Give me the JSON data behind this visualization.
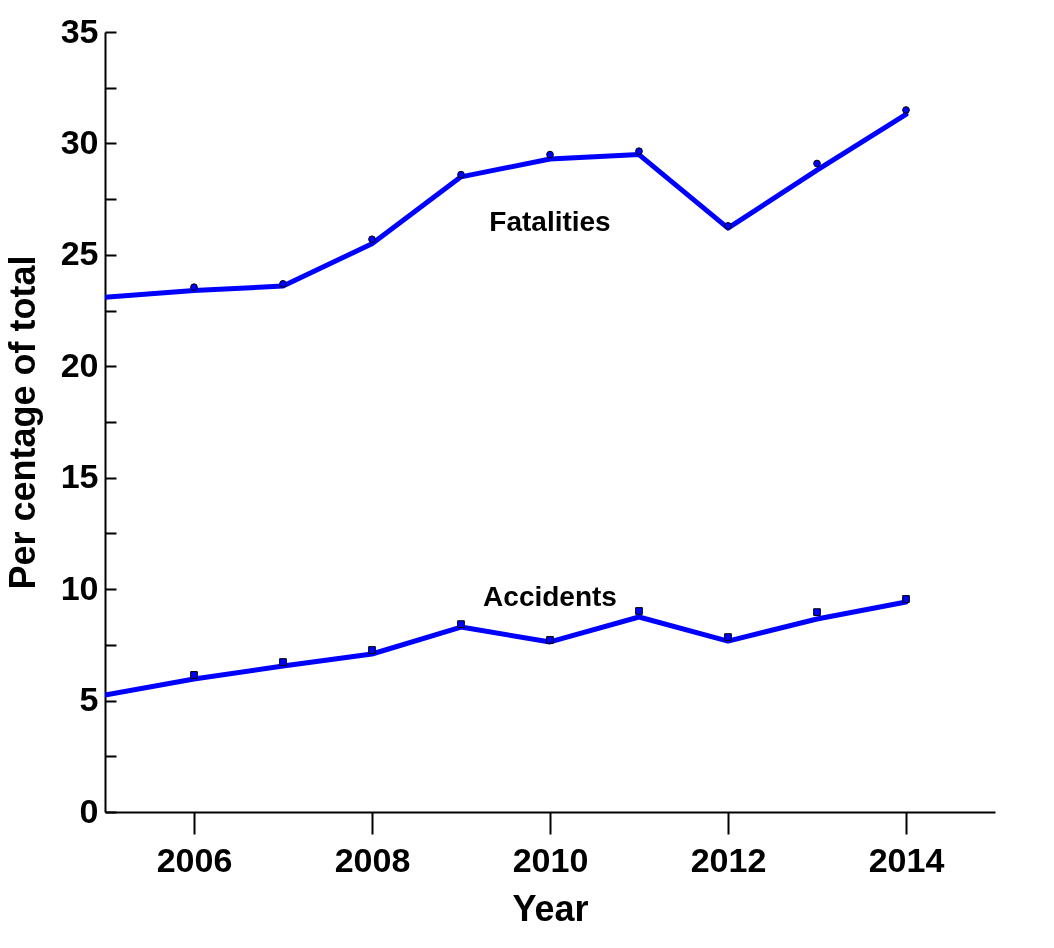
{
  "chart_data": {
    "type": "line",
    "xlabel": "Year",
    "ylabel": "Per centage of total",
    "x": [
      2005,
      2006,
      2007,
      2008,
      2009,
      2010,
      2011,
      2012,
      2013,
      2014
    ],
    "xlim": [
      2005,
      2015
    ],
    "xticks": [
      2006,
      2008,
      2010,
      2012,
      2014
    ],
    "ylim": [
      0,
      35
    ],
    "yticks": [
      0,
      {
        "value": 2.5,
        "label": null
      },
      5,
      {
        "value": 7.5,
        "label": null
      },
      10,
      {
        "value": 12.5,
        "label": null
      },
      15,
      {
        "value": 17.5,
        "label": null
      },
      20,
      {
        "value": 22.5,
        "label": null
      },
      25,
      {
        "value": 27.5,
        "label": null
      },
      30,
      {
        "value": 32.5,
        "label": null
      },
      35
    ],
    "grid": false,
    "legend": false,
    "series": [
      {
        "type": "line",
        "name": "Fatalities",
        "color": "#0000ff",
        "values": [
          23.1,
          23.4,
          23.6,
          25.5,
          28.5,
          29.3,
          29.5,
          26.2,
          28.8,
          31.3
        ]
      },
      {
        "type": "line",
        "name": "Accidents",
        "color": "#0000ff",
        "values": [
          5.25,
          5.97,
          6.55,
          7.09,
          8.3,
          7.63,
          8.75,
          7.67,
          8.66,
          9.42
        ]
      },
      {
        "type": "scatter",
        "marker": "circle",
        "color": "#0000ff",
        "x": [
          2006,
          2007,
          2008,
          2009,
          2010,
          2011,
          2012,
          2013,
          2014
        ],
        "values": [
          23.55,
          23.7,
          25.7,
          28.6,
          29.5,
          29.65,
          26.3,
          29.1,
          31.5
        ]
      },
      {
        "type": "scatter",
        "marker": "square",
        "color": "#0000ff",
        "x": [
          2006,
          2007,
          2008,
          2009,
          2010,
          2011,
          2012,
          2013,
          2014
        ],
        "values": [
          6.15,
          6.73,
          7.27,
          8.43,
          7.72,
          9.02,
          7.85,
          8.97,
          9.56
        ]
      }
    ]
  }
}
